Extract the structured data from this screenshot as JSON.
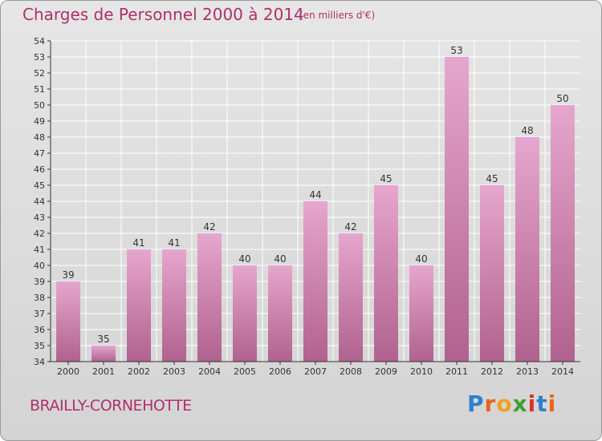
{
  "header": {
    "title": "Charges de Personnel 2000 à 2014",
    "subtitle": "(en milliers d'€)"
  },
  "footer": {
    "commune": "BRAILLY-CORNEHOTTE",
    "brand_letters": [
      {
        "ch": "P",
        "color": "#2e7fd0"
      },
      {
        "ch": "r",
        "color": "#e8641c"
      },
      {
        "ch": "o",
        "color": "#f0a020"
      },
      {
        "ch": "x",
        "color": "#3aa032"
      },
      {
        "ch": "i",
        "color": "#d8342c"
      },
      {
        "ch": "t",
        "color": "#2e7fd0"
      },
      {
        "ch": "i",
        "color": "#e8641c"
      }
    ]
  },
  "colors": {
    "bar_top": "#e6a6ce",
    "bar_bottom": "#b0628e",
    "axis": "#333333",
    "grid": "#ffffff"
  },
  "chart_data": {
    "type": "bar",
    "title": "Charges de Personnel 2000 à 2014",
    "subtitle": "(en milliers d'€)",
    "categories": [
      "2000",
      "2001",
      "2002",
      "2003",
      "2004",
      "2005",
      "2006",
      "2007",
      "2008",
      "2009",
      "2010",
      "2011",
      "2012",
      "2013",
      "2014"
    ],
    "values": [
      39,
      35,
      41,
      41,
      42,
      40,
      40,
      44,
      42,
      45,
      40,
      53,
      45,
      48,
      50
    ],
    "ylim": [
      34,
      54
    ],
    "ytick_step": 1,
    "grid": true,
    "data_labels": true,
    "legend": "none"
  }
}
